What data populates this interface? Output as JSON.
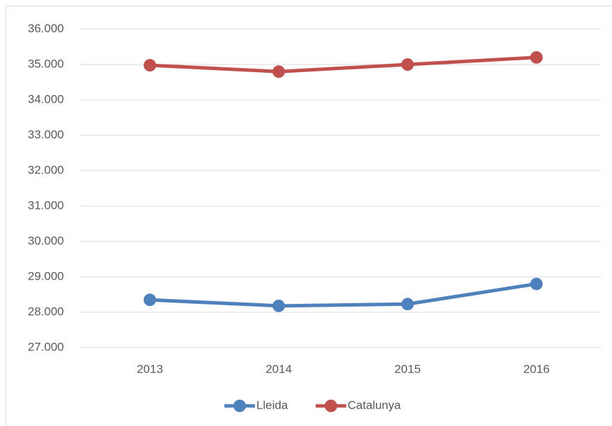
{
  "chart_data": {
    "type": "line",
    "categories": [
      "2013",
      "2014",
      "2015",
      "2016"
    ],
    "series": [
      {
        "name": "Lleida",
        "color": "#4f81bd",
        "values": [
          28350,
          28180,
          28230,
          28800
        ]
      },
      {
        "name": "Catalunya",
        "color": "#c0504d",
        "values": [
          34980,
          34800,
          35000,
          35200
        ]
      }
    ],
    "ylim": [
      27000,
      36000
    ],
    "yticks": [
      {
        "value": 27000,
        "label": "27.000"
      },
      {
        "value": 28000,
        "label": "28.000"
      },
      {
        "value": 29000,
        "label": "29.000"
      },
      {
        "value": 30000,
        "label": "30.000"
      },
      {
        "value": 31000,
        "label": "31.000"
      },
      {
        "value": 32000,
        "label": "32.000"
      },
      {
        "value": 33000,
        "label": "33.000"
      },
      {
        "value": 34000,
        "label": "34.000"
      },
      {
        "value": 35000,
        "label": "35.000"
      },
      {
        "value": 36000,
        "label": "36.000"
      }
    ],
    "grid": true,
    "legend": "bottom"
  }
}
